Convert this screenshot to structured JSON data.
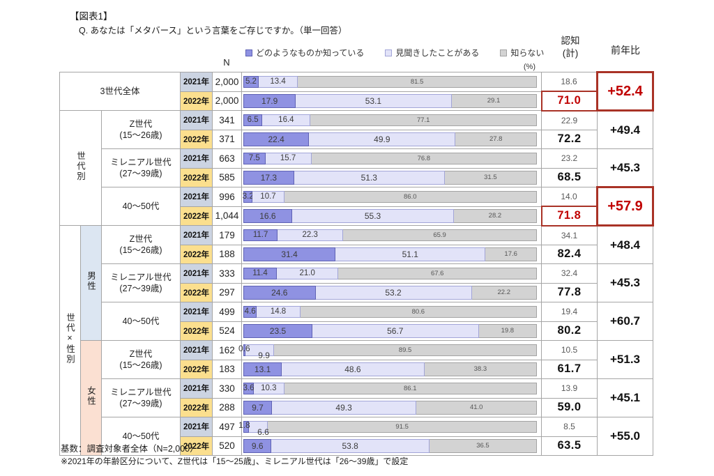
{
  "title": "【図表1】",
  "question": "Q. あなたは「メタバース」という言葉をご存じですか。（単一回答）",
  "headers": {
    "n": "N",
    "percent": "(%)",
    "ninchi_line1": "認知",
    "ninchi_line2": "(計)",
    "yoy": "前年比"
  },
  "footer": {
    "base": "基数：調査対象者全体（N=2,000）",
    "note": "※2021年の年齢区分について、Z世代は「15～25歳」、ミレニアル世代は「26～39歳」で設定"
  },
  "colors": {
    "known": "#8f92e2",
    "heard": "#e2e3f8",
    "unknown": "#d3d3d3",
    "year2021_bg": "#ccd4e2",
    "year2022_bg": "#fbdf8e",
    "male_bg": "#dce6f2",
    "female_bg": "#fbe0d2",
    "accent_red_text": "#c00000",
    "accent_red_border": "#a93226"
  },
  "chart_data": {
    "type": "bar",
    "stacked": true,
    "orientation": "horizontal",
    "unit": "%",
    "xlim": [
      0,
      100
    ],
    "title": "あなたは「メタバース」という言葉をご存じですか。（単一回答）",
    "legend": [
      {
        "label": "どのようなものか知っている",
        "color": "#8f92e2"
      },
      {
        "label": "見聞きしたことがある",
        "color": "#e2e3f8"
      },
      {
        "label": "知らない",
        "color": "#d3d3d3"
      }
    ],
    "sections": [
      {
        "label": "世代別",
        "cat_start": 1,
        "cat_count": 3
      },
      {
        "label": "世代×性別",
        "cat_start": 4,
        "cat_count": 6
      }
    ],
    "genders": [
      {
        "label": "男性",
        "cat_start": 4,
        "cat_count": 3
      },
      {
        "label": "女性",
        "cat_start": 7,
        "cat_count": 3
      }
    ],
    "groups": [
      {
        "category": "3世代全体",
        "category2": "",
        "yoy": "+52.4",
        "highlight": true,
        "rows": [
          {
            "year": "2021年",
            "n": "2,000",
            "values": [
              5.2,
              13.4,
              81.5
            ],
            "ninchi": "18.6",
            "ninchi_red": false
          },
          {
            "year": "2022年",
            "n": "2,000",
            "values": [
              17.9,
              53.1,
              29.1
            ],
            "ninchi": "71.0",
            "ninchi_red": true
          }
        ]
      },
      {
        "category": "Z世代",
        "category2": "(15～26歳)",
        "yoy": "+49.4",
        "highlight": false,
        "rows": [
          {
            "year": "2021年",
            "n": "341",
            "values": [
              6.5,
              16.4,
              77.1
            ],
            "ninchi": "22.9",
            "ninchi_red": false
          },
          {
            "year": "2022年",
            "n": "371",
            "values": [
              22.4,
              49.9,
              27.8
            ],
            "ninchi": "72.2",
            "ninchi_red": false
          }
        ]
      },
      {
        "category": "ミレニアル世代",
        "category2": "(27～39歳)",
        "yoy": "+45.3",
        "highlight": false,
        "rows": [
          {
            "year": "2021年",
            "n": "663",
            "values": [
              7.5,
              15.7,
              76.8
            ],
            "ninchi": "23.2",
            "ninchi_red": false
          },
          {
            "year": "2022年",
            "n": "585",
            "values": [
              17.3,
              51.3,
              31.5
            ],
            "ninchi": "68.5",
            "ninchi_red": false
          }
        ]
      },
      {
        "category": "40～50代",
        "category2": "",
        "yoy": "+57.9",
        "highlight": true,
        "rows": [
          {
            "year": "2021年",
            "n": "996",
            "values": [
              3.2,
              10.7,
              86.0
            ],
            "ninchi": "14.0",
            "ninchi_red": false
          },
          {
            "year": "2022年",
            "n": "1,044",
            "values": [
              16.6,
              55.3,
              28.2
            ],
            "ninchi": "71.8",
            "ninchi_red": true
          }
        ]
      },
      {
        "category": "Z世代",
        "category2": "(15～26歳)",
        "yoy": "+48.4",
        "highlight": false,
        "rows": [
          {
            "year": "2021年",
            "n": "179",
            "values": [
              11.7,
              22.3,
              65.9
            ],
            "ninchi": "34.1",
            "ninchi_red": false
          },
          {
            "year": "2022年",
            "n": "188",
            "values": [
              31.4,
              51.1,
              17.6
            ],
            "ninchi": "82.4",
            "ninchi_red": false
          }
        ]
      },
      {
        "category": "ミレニアル世代",
        "category2": "(27～39歳)",
        "yoy": "+45.3",
        "highlight": false,
        "rows": [
          {
            "year": "2021年",
            "n": "333",
            "values": [
              11.4,
              21.0,
              67.6
            ],
            "ninchi": "32.4",
            "ninchi_red": false
          },
          {
            "year": "2022年",
            "n": "297",
            "values": [
              24.6,
              53.2,
              22.2
            ],
            "ninchi": "77.8",
            "ninchi_red": false
          }
        ]
      },
      {
        "category": "40～50代",
        "category2": "",
        "yoy": "+60.7",
        "highlight": false,
        "rows": [
          {
            "year": "2021年",
            "n": "499",
            "values": [
              4.6,
              14.8,
              80.6
            ],
            "ninchi": "19.4",
            "ninchi_red": false
          },
          {
            "year": "2022年",
            "n": "524",
            "values": [
              23.5,
              56.7,
              19.8
            ],
            "ninchi": "80.2",
            "ninchi_red": false
          }
        ]
      },
      {
        "category": "Z世代",
        "category2": "(15～26歳)",
        "yoy": "+51.3",
        "highlight": false,
        "rows": [
          {
            "year": "2021年",
            "n": "162",
            "values": [
              0.6,
              9.9,
              89.5
            ],
            "ninchi": "10.5",
            "ninchi_red": false
          },
          {
            "year": "2022年",
            "n": "183",
            "values": [
              13.1,
              48.6,
              38.3
            ],
            "ninchi": "61.7",
            "ninchi_red": false
          }
        ]
      },
      {
        "category": "ミレニアル世代",
        "category2": "(27～39歳)",
        "yoy": "+45.1",
        "highlight": false,
        "rows": [
          {
            "year": "2021年",
            "n": "330",
            "values": [
              3.6,
              10.3,
              86.1
            ],
            "ninchi": "13.9",
            "ninchi_red": false
          },
          {
            "year": "2022年",
            "n": "288",
            "values": [
              9.7,
              49.3,
              41.0
            ],
            "ninchi": "59.0",
            "ninchi_red": false
          }
        ]
      },
      {
        "category": "40～50代",
        "category2": "",
        "yoy": "+55.0",
        "highlight": false,
        "rows": [
          {
            "year": "2021年",
            "n": "497",
            "values": [
              1.8,
              6.6,
              91.5
            ],
            "ninchi": "8.5",
            "ninchi_red": false
          },
          {
            "year": "2022年",
            "n": "520",
            "values": [
              9.6,
              53.8,
              36.5
            ],
            "ninchi": "63.5",
            "ninchi_red": false
          }
        ]
      }
    ]
  }
}
